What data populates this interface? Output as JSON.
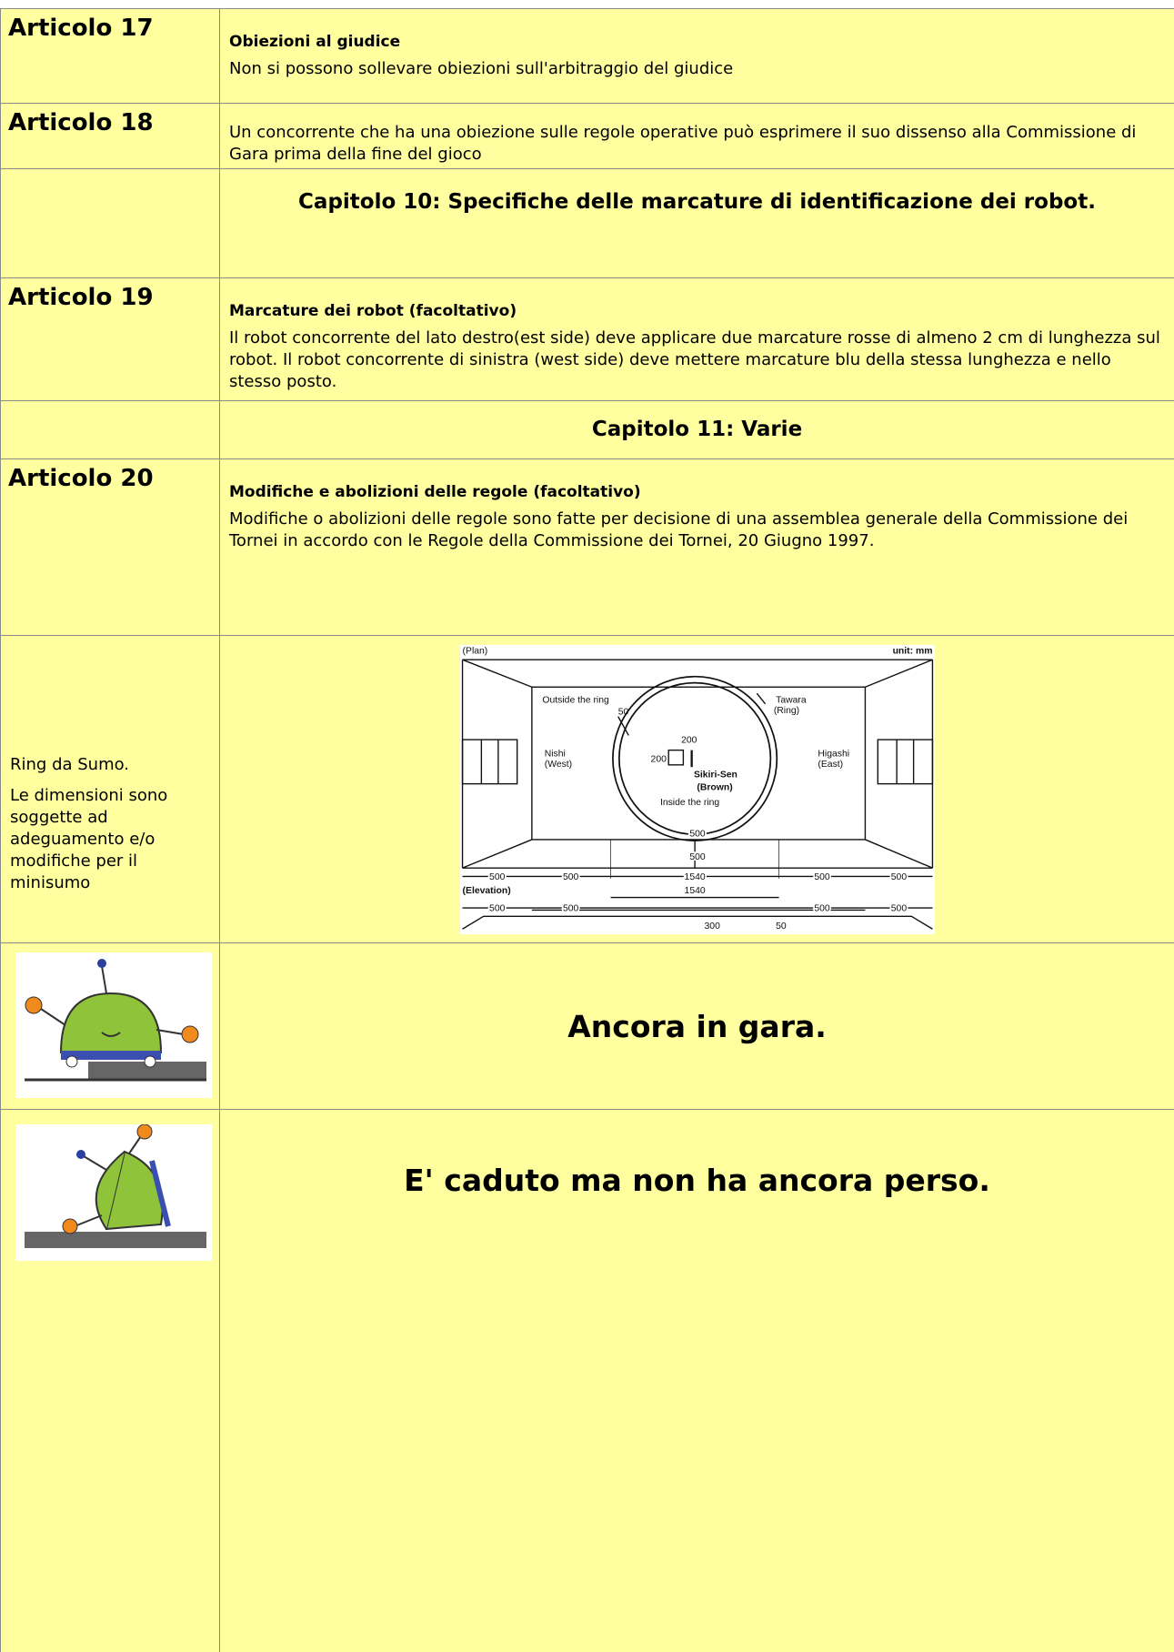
{
  "rows": [
    {
      "label": "Articolo 17",
      "title": "Obiezioni al giudice",
      "text": "Non si possono sollevare obiezioni sull'arbitraggio del giudice"
    },
    {
      "label": "Articolo 18",
      "text": "Un concorrente che ha una obiezione sulle regole operative può esprimere il suo dissenso alla Commissione di Gara prima della fine del gioco"
    },
    {
      "heading": "Capitolo 10: Specifiche delle marcature di identificazione dei robot."
    },
    {
      "label": "Articolo 19",
      "title": "Marcature dei robot (facoltativo)",
      "text": "Il robot concorrente del lato destro(est side) deve applicare due marcature rosse di almeno 2 cm di lunghezza sul robot. Il robot concorrente di sinistra (west side) deve mettere marcature blu della stessa lunghezza e nello stesso posto."
    },
    {
      "heading": "Capitolo 11: Varie"
    },
    {
      "label": "Articolo 20",
      "title": "Modifiche e abolizioni delle regole (facoltativo)",
      "text": "Modifiche o abolizioni delle regole sono fatte per decisione di una assemblea generale della Commissione dei Tornei in accordo con le Regole della Commissione dei Tornei, 20 Giugno 1997."
    },
    {
      "notes": [
        "Ring da Sumo.",
        "Le dimensioni sono soggette ad adeguamento e/o modifiche per il minisumo"
      ],
      "diagram": {
        "plan": "(Plan)",
        "unit": "unit: mm",
        "outside": "Outside the ring",
        "tawara": "Tawara",
        "ring": "(Ring)",
        "gap": "50",
        "width": "200",
        "height": "200",
        "nishi": "Nishi",
        "west": "(West)",
        "higashi": "Higashi",
        "east": "(East)",
        "sikiri": "Sikiri-Sen",
        "brown": "(Brown)",
        "inside": "Inside the ring",
        "margin_top": "500",
        "margin_bottom": "500",
        "plan_dims": [
          "500",
          "500",
          "1540",
          "500",
          "500"
        ],
        "elevation": "(Elevation)",
        "elevation_width": "1540",
        "elevation_dims": [
          "500",
          "500",
          "500",
          "500"
        ],
        "ring_height": "300",
        "tawara_height": "50"
      }
    },
    {
      "caption": "Ancora in gara."
    },
    {
      "caption": "E' caduto ma non ha ancora perso."
    }
  ]
}
